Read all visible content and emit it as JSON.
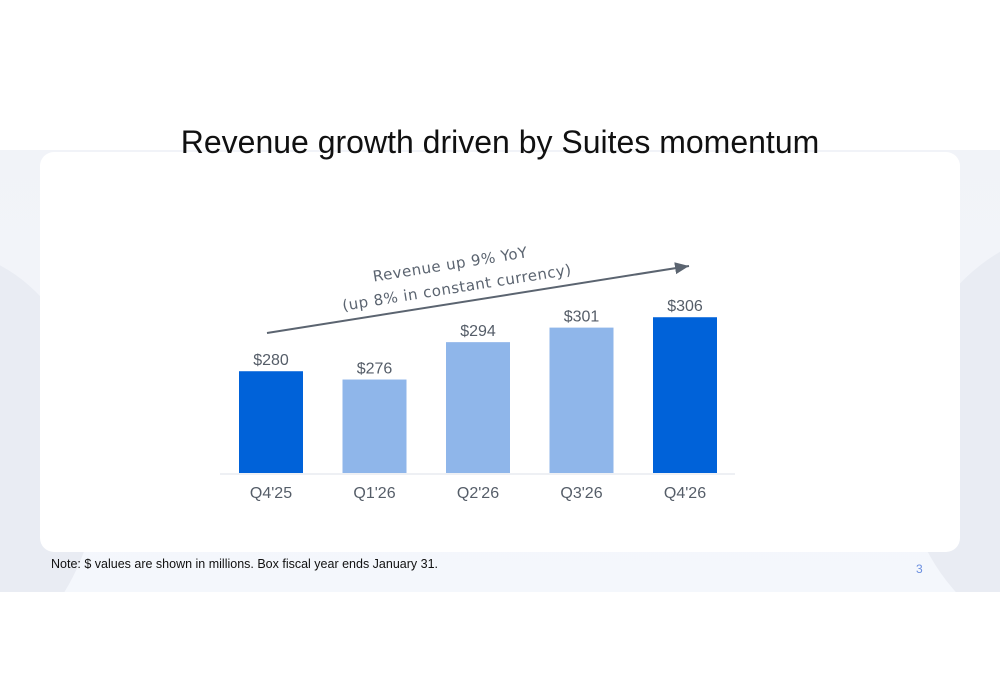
{
  "slide": {
    "title": "Revenue growth driven by Suites momentum",
    "note": "Note: $ values are shown in millions. Box fiscal year ends January 31.",
    "page_number": "3"
  },
  "chart_data": {
    "type": "bar",
    "title": "Revenue growth driven by Suites momentum",
    "xlabel": "",
    "ylabel": "",
    "unit": "$M",
    "categories": [
      "Q4'25",
      "Q1'26",
      "Q2'26",
      "Q3'26",
      "Q4'26"
    ],
    "values": [
      280,
      276,
      294,
      301,
      306
    ],
    "data_labels": [
      "$280",
      "$276",
      "$294",
      "$301",
      "$306"
    ],
    "ylim": [
      231,
      320
    ],
    "grid": false,
    "colors": [
      "#0062d9",
      "#8fb6ea",
      "#8fb6ea",
      "#8fb6ea",
      "#0062d9"
    ],
    "annotation": {
      "line1": "Revenue up 9% YoY",
      "line2": "(up 8% in constant currency)"
    }
  }
}
